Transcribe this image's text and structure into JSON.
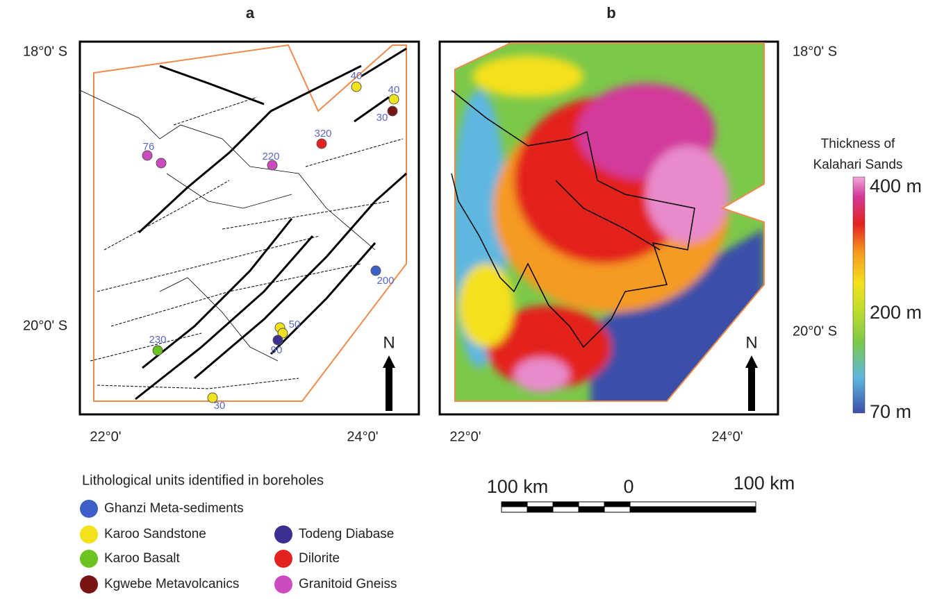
{
  "panels": [
    {
      "label": "a",
      "lat_labels": [
        "18°0' S",
        "20°0' S"
      ],
      "lon_labels": [
        "22°0'",
        "24°0'"
      ]
    },
    {
      "label": "b",
      "lat_labels": [
        "18°0' S",
        "20°0' S"
      ],
      "lon_labels": [
        "22°0'",
        "24°0'"
      ]
    }
  ],
  "boreholes": [
    {
      "label": 40,
      "color": "#f2e21c"
    },
    {
      "label": 40,
      "color": "#f2e21c"
    },
    {
      "label": 30,
      "color": "#7a1414"
    },
    {
      "label": 320,
      "color": "#e3231f"
    },
    {
      "label": 220,
      "color": "#cc4cbf"
    },
    {
      "label": 76,
      "color": "#cc4cbf"
    },
    {
      "label": 200,
      "color": "#3d5fc8"
    },
    {
      "label": 50,
      "color": "#f2e21c"
    },
    {
      "label": 90,
      "color": "#3b2f8f"
    },
    {
      "label": 230,
      "color": "#6cc21f"
    },
    {
      "label": 30,
      "color": "#f2e21c"
    }
  ],
  "north_label": "N",
  "colorbar": {
    "title": [
      "Thickness of",
      "Kalahari Sands"
    ],
    "labels": [
      "400 m",
      "200 m",
      "70 m"
    ]
  },
  "scale_bar": {
    "labels": [
      "100 km",
      "0",
      "100 km"
    ]
  },
  "legend": {
    "title": "Lithological units identified in boreholes",
    "items": [
      {
        "label": "Ghanzi Meta-sediments",
        "color": "#3d5fc8"
      },
      {
        "label": "Karoo Sandstone",
        "color": "#f2e21c"
      },
      {
        "label": "Karoo Basalt",
        "color": "#6cc21f"
      },
      {
        "label": "Kgwebe Metavolcanics",
        "color": "#7a1414"
      },
      {
        "label": "Todeng Diabase",
        "color": "#3b2f8f"
      },
      {
        "label": "Dilorite",
        "color": "#e3231f"
      },
      {
        "label": "Granitoid Gneiss",
        "color": "#cc4cbf"
      }
    ]
  }
}
